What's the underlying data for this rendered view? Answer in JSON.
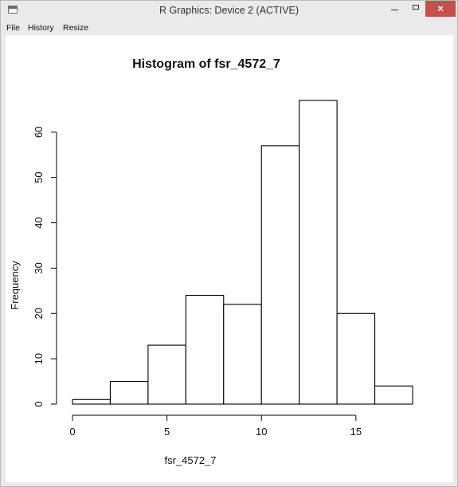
{
  "window": {
    "title": "R Graphics: Device 2 (ACTIVE)",
    "close_label": "×"
  },
  "menu": [
    {
      "label": "File"
    },
    {
      "label": "History"
    },
    {
      "label": "Resize"
    }
  ],
  "chart_data": {
    "type": "bar",
    "title": "Histogram of fsr_4572_7",
    "xlabel": "fsr_4572_7",
    "ylabel": "Frequency",
    "bins": [
      [
        0,
        2
      ],
      [
        2,
        4
      ],
      [
        4,
        6
      ],
      [
        6,
        8
      ],
      [
        8,
        10
      ],
      [
        10,
        12
      ],
      [
        12,
        14
      ],
      [
        14,
        16
      ],
      [
        16,
        18
      ]
    ],
    "values": [
      1,
      5,
      13,
      24,
      22,
      57,
      67,
      20,
      4
    ],
    "xlim": [
      0,
      18
    ],
    "ylim": [
      0,
      67
    ],
    "xticks": [
      "0",
      "5",
      "10",
      "15"
    ],
    "yticks": [
      "0",
      "10",
      "20",
      "30",
      "40",
      "50",
      "60"
    ],
    "grid": false
  }
}
